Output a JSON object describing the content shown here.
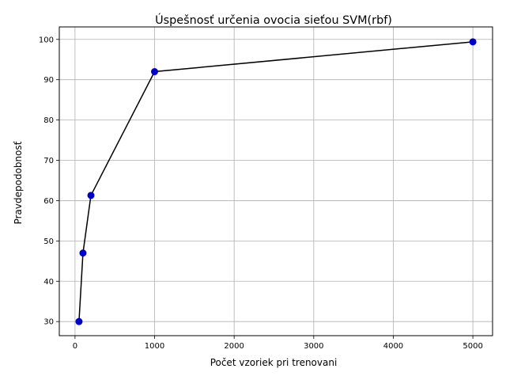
{
  "chart_data": {
    "type": "line",
    "title": "Úspešnosť určenia ovocia sieťou SVM(rbf)",
    "xlabel": "Počet vzoriek pri trenovani",
    "ylabel": "Pravdepodobnosť",
    "x": [
      50,
      100,
      200,
      1000,
      5000
    ],
    "series": [
      {
        "values": [
          30,
          47,
          61.3,
          92,
          99.4
        ]
      }
    ],
    "xlim": [
      -197.5,
      5247.5
    ],
    "ylim": [
      26.5,
      103.1
    ],
    "xticks": [
      0,
      1000,
      2000,
      3000,
      4000,
      5000
    ],
    "xtick_labels": [
      "0",
      "1000",
      "2000",
      "3000",
      "4000",
      "5000"
    ],
    "yticks": [
      30,
      40,
      50,
      60,
      70,
      80,
      90,
      100
    ],
    "ytick_labels": [
      "30",
      "40",
      "50",
      "60",
      "70",
      "80",
      "90",
      "100"
    ],
    "grid": true,
    "legend": "none",
    "line_color": "#000000",
    "marker_color": "#0000cc"
  }
}
